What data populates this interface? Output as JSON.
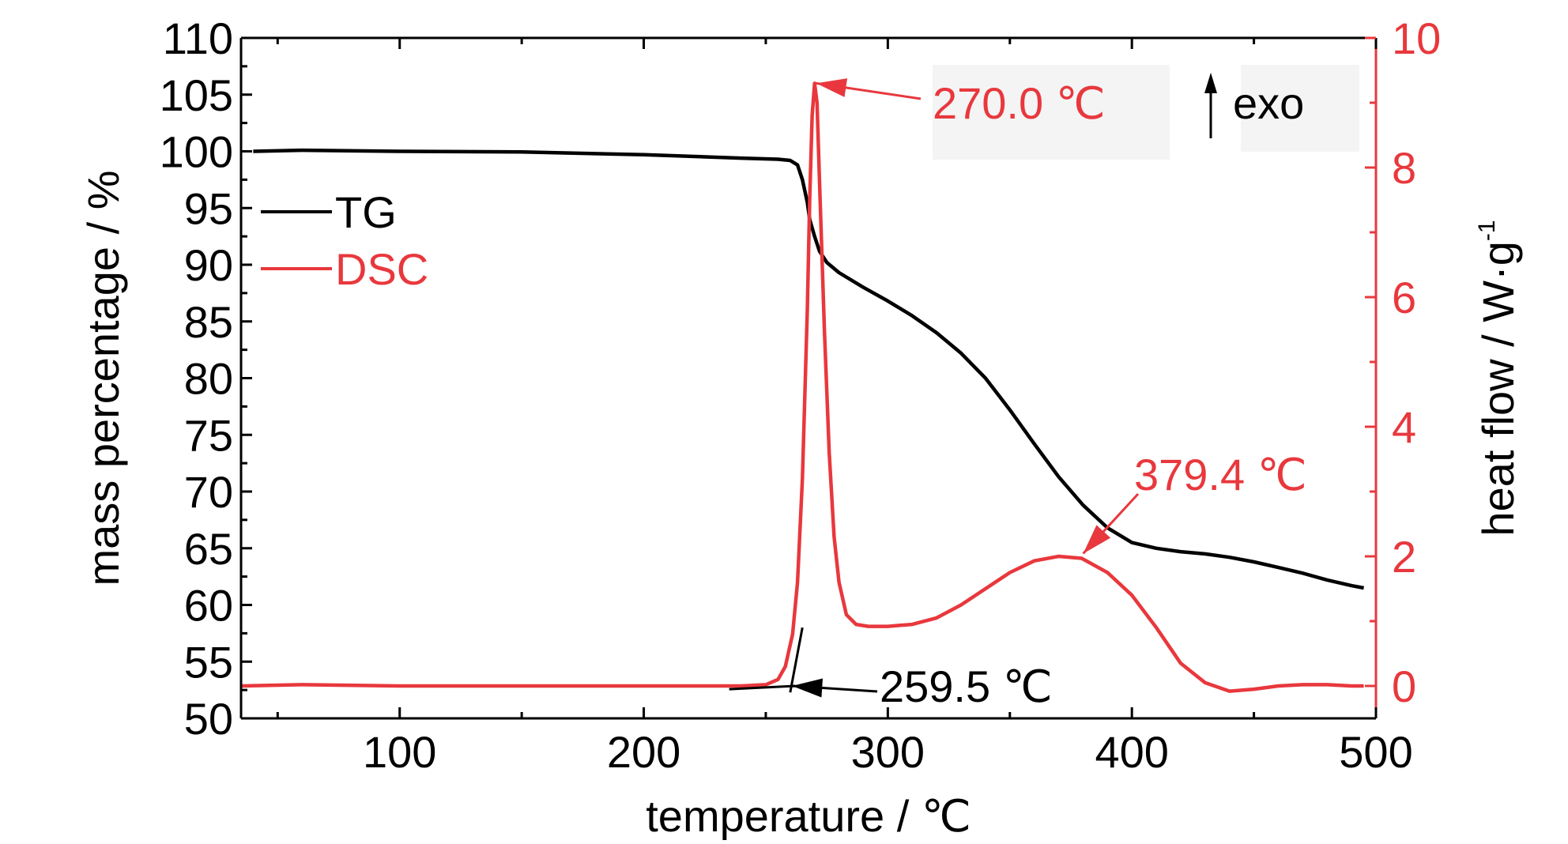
{
  "chart_data": {
    "type": "line",
    "xlabel": "temperature / ℃",
    "ylabel": "mass percentage / %",
    "y2label": "heat flow / W·g",
    "y2label_superscript": "-1",
    "xlim": [
      35,
      500
    ],
    "ylim": [
      50,
      110
    ],
    "y2lim": [
      -0.5,
      10
    ],
    "x_ticks": [
      100,
      200,
      300,
      400,
      500
    ],
    "y_ticks": [
      50,
      55,
      60,
      65,
      70,
      75,
      80,
      85,
      90,
      95,
      100,
      105,
      110
    ],
    "y2_ticks": [
      0,
      2,
      4,
      6,
      8,
      10
    ],
    "grid": false,
    "legend_position": "upper-left",
    "series": [
      {
        "name": "TG",
        "axis": "left",
        "color": "#000000",
        "points": [
          [
            40,
            100.0
          ],
          [
            60,
            100.1
          ],
          [
            100,
            100.0
          ],
          [
            150,
            99.95
          ],
          [
            200,
            99.7
          ],
          [
            240,
            99.4
          ],
          [
            255,
            99.3
          ],
          [
            260,
            99.2
          ],
          [
            263,
            98.8
          ],
          [
            265,
            97.5
          ],
          [
            267,
            95.5
          ],
          [
            268,
            94.0
          ],
          [
            270,
            92.5
          ],
          [
            272,
            91.2
          ],
          [
            275,
            90.2
          ],
          [
            280,
            89.3
          ],
          [
            290,
            88.0
          ],
          [
            300,
            86.8
          ],
          [
            310,
            85.5
          ],
          [
            320,
            84.0
          ],
          [
            330,
            82.2
          ],
          [
            340,
            80.0
          ],
          [
            350,
            77.2
          ],
          [
            360,
            74.2
          ],
          [
            370,
            71.3
          ],
          [
            380,
            68.8
          ],
          [
            390,
            66.8
          ],
          [
            400,
            65.5
          ],
          [
            410,
            65.0
          ],
          [
            420,
            64.7
          ],
          [
            430,
            64.5
          ],
          [
            440,
            64.2
          ],
          [
            450,
            63.8
          ],
          [
            460,
            63.3
          ],
          [
            470,
            62.8
          ],
          [
            480,
            62.2
          ],
          [
            490,
            61.7
          ],
          [
            495,
            61.5
          ]
        ]
      },
      {
        "name": "DSC",
        "axis": "right",
        "color": "#e8383d",
        "points": [
          [
            35,
            0.0
          ],
          [
            60,
            0.02
          ],
          [
            100,
            0.0
          ],
          [
            150,
            0.0
          ],
          [
            200,
            0.0
          ],
          [
            240,
            0.0
          ],
          [
            250,
            0.02
          ],
          [
            255,
            0.1
          ],
          [
            258,
            0.3
          ],
          [
            261,
            0.8
          ],
          [
            263,
            1.6
          ],
          [
            265,
            3.2
          ],
          [
            267,
            5.8
          ],
          [
            268,
            7.5
          ],
          [
            269,
            8.8
          ],
          [
            270,
            9.3
          ],
          [
            271,
            9.0
          ],
          [
            272,
            7.8
          ],
          [
            274,
            5.5
          ],
          [
            276,
            3.6
          ],
          [
            278,
            2.3
          ],
          [
            280,
            1.6
          ],
          [
            283,
            1.1
          ],
          [
            287,
            0.95
          ],
          [
            292,
            0.92
          ],
          [
            300,
            0.92
          ],
          [
            310,
            0.95
          ],
          [
            320,
            1.05
          ],
          [
            330,
            1.25
          ],
          [
            340,
            1.5
          ],
          [
            350,
            1.75
          ],
          [
            360,
            1.93
          ],
          [
            370,
            2.0
          ],
          [
            379.4,
            1.97
          ],
          [
            390,
            1.75
          ],
          [
            400,
            1.4
          ],
          [
            410,
            0.9
          ],
          [
            420,
            0.35
          ],
          [
            430,
            0.05
          ],
          [
            440,
            -0.08
          ],
          [
            450,
            -0.05
          ],
          [
            460,
            0.0
          ],
          [
            470,
            0.02
          ],
          [
            480,
            0.02
          ],
          [
            490,
            0.0
          ],
          [
            495,
            0.0
          ]
        ]
      }
    ],
    "onset_tangent": {
      "color": "#000000",
      "baseline": [
        [
          235,
          -0.05
        ],
        [
          262,
          0.0
        ]
      ],
      "rise": [
        [
          260,
          -0.1
        ],
        [
          265,
          0.9
        ]
      ]
    },
    "annotations": [
      {
        "id": "peak-270",
        "text": "270.0 ℃",
        "color": "#e8383d",
        "x": 270.0,
        "y": 9.3,
        "axis": "right"
      },
      {
        "id": "onset-259",
        "text": "259.5 ℃",
        "color": "#000000",
        "x": 259.5,
        "y": 0.0,
        "axis": "right"
      },
      {
        "id": "peak-379",
        "text": "379.4 ℃",
        "color": "#e8383d",
        "x": 379.4,
        "y": 1.97,
        "axis": "right"
      }
    ],
    "exo_label": "exo"
  }
}
